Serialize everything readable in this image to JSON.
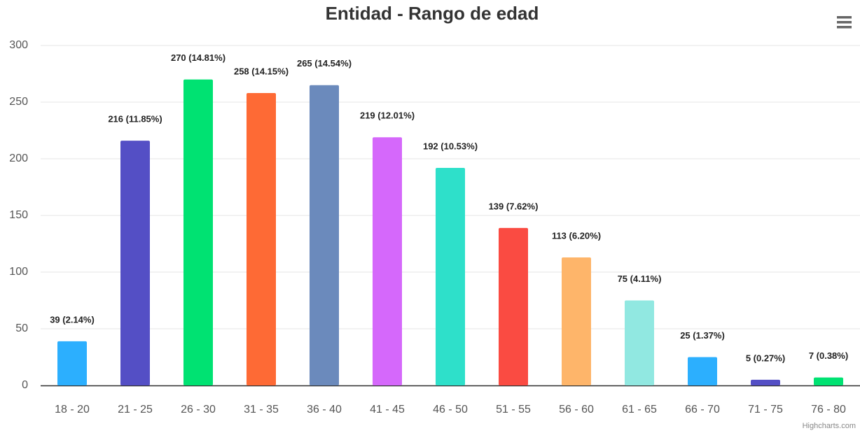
{
  "chart_data": {
    "type": "bar",
    "title": "Entidad - Rango de edad",
    "categories": [
      "18 - 20",
      "21 - 25",
      "26 - 30",
      "31 - 35",
      "36 - 40",
      "41 - 45",
      "46 - 50",
      "51 - 55",
      "56 - 60",
      "61 - 65",
      "66 - 70",
      "71 - 75",
      "76 - 80"
    ],
    "values": [
      39,
      216,
      270,
      258,
      265,
      219,
      192,
      139,
      113,
      75,
      25,
      5,
      7
    ],
    "value_labels": [
      "39 (2.14%)",
      "216 (11.85%)",
      "270 (14.81%)",
      "258 (14.15%)",
      "265 (14.54%)",
      "219 (12.01%)",
      "192 (10.53%)",
      "139 (7.62%)",
      "113 (6.20%)",
      "75 (4.11%)",
      "25 (1.37%)",
      "5 (0.27%)",
      "7 (0.38%)"
    ],
    "colors": [
      "#2caffe",
      "#544fc5",
      "#00e272",
      "#fe6a35",
      "#6b8abc",
      "#d568fb",
      "#2ee0ca",
      "#fa4b42",
      "#feb56a",
      "#91e8e1",
      "#2caffe",
      "#544fc5",
      "#00e272"
    ],
    "ylim": [
      0,
      300
    ],
    "yticks": [
      0,
      50,
      100,
      150,
      200,
      250,
      300
    ],
    "grid": true,
    "credits": "Highcharts.com"
  }
}
